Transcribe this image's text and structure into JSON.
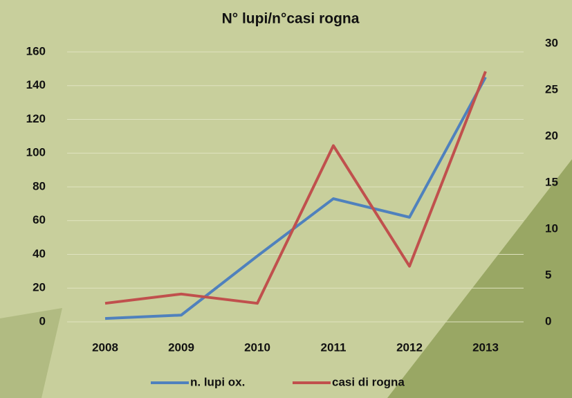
{
  "chart_data": {
    "type": "line",
    "title": "N° lupi/n°casi rogna",
    "categories": [
      "2008",
      "2009",
      "2010",
      "2011",
      "2012",
      "2013"
    ],
    "series": [
      {
        "name": "n. lupi ox.",
        "color": "#4f81bd",
        "values": [
          2,
          4,
          39,
          73,
          62,
          145
        ]
      },
      {
        "name": "casi di rogna",
        "color": "#c0504d",
        "axis": "y2",
        "values": [
          2,
          3,
          2,
          19,
          6,
          27
        ]
      }
    ],
    "ylim": [
      0,
      160
    ],
    "yticks": [
      0,
      20,
      40,
      60,
      80,
      100,
      120,
      140,
      160
    ],
    "y2lim": [
      0,
      30
    ],
    "y2ticks": [
      0,
      5,
      10,
      15,
      20,
      25,
      30
    ],
    "grid": true,
    "legend": "bottom"
  }
}
